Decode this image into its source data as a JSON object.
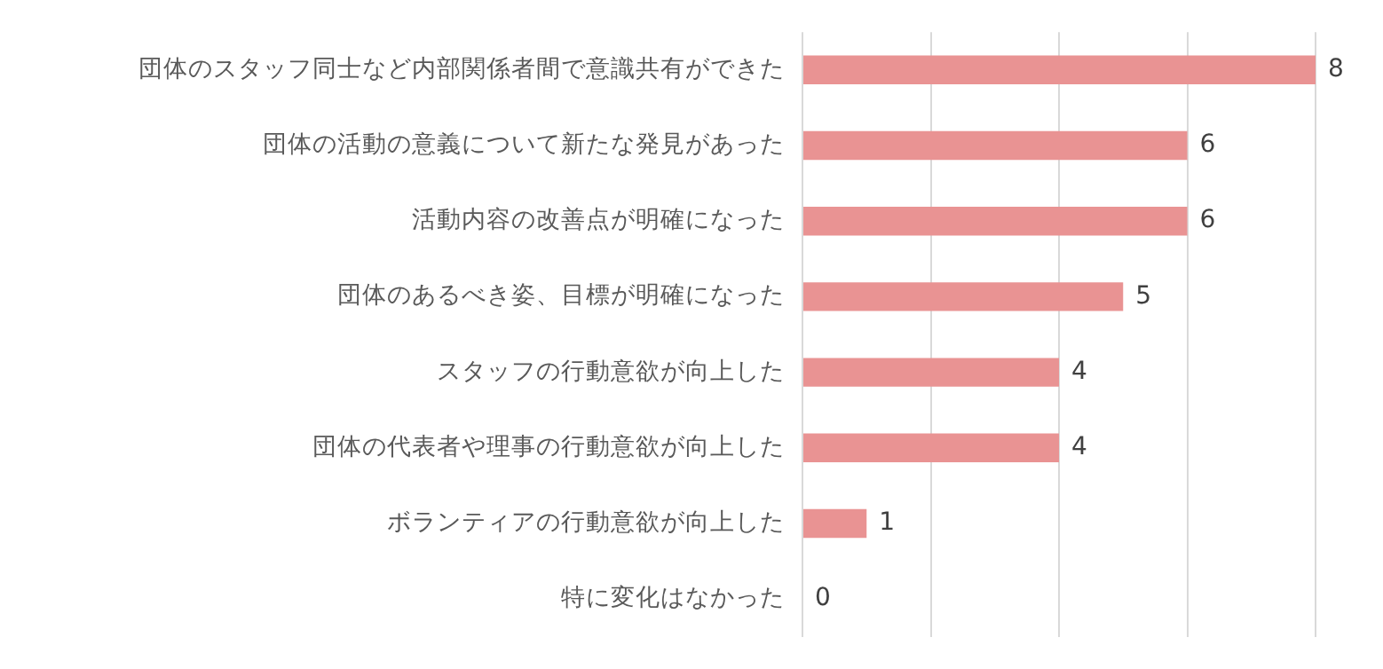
{
  "chart_data": {
    "type": "bar",
    "orientation": "horizontal",
    "categories": [
      "団体のスタッフ同士など内部関係者間で意識共有ができた",
      "団体の活動の意義について新たな発見があった",
      "活動内容の改善点が明確になった",
      "団体のあるべき姿、目標が明確になった",
      "スタッフの行動意欲が向上した",
      "団体の代表者や理事の行動意欲が向上した",
      "ボランティアの行動意欲が向上した",
      "特に変化はなかった"
    ],
    "values": [
      8,
      6,
      6,
      5,
      4,
      4,
      1,
      0
    ],
    "color": "#e99393",
    "xlim": [
      0,
      8
    ],
    "xticks": [
      {
        "value": 0,
        "label": null
      },
      {
        "value": 2,
        "label": null
      },
      {
        "value": 4,
        "label": null
      },
      {
        "value": 6,
        "label": null
      },
      {
        "value": 8,
        "label": null
      }
    ],
    "tick_labels": "y",
    "grid": "x",
    "data_labels": true,
    "legend": false
  }
}
